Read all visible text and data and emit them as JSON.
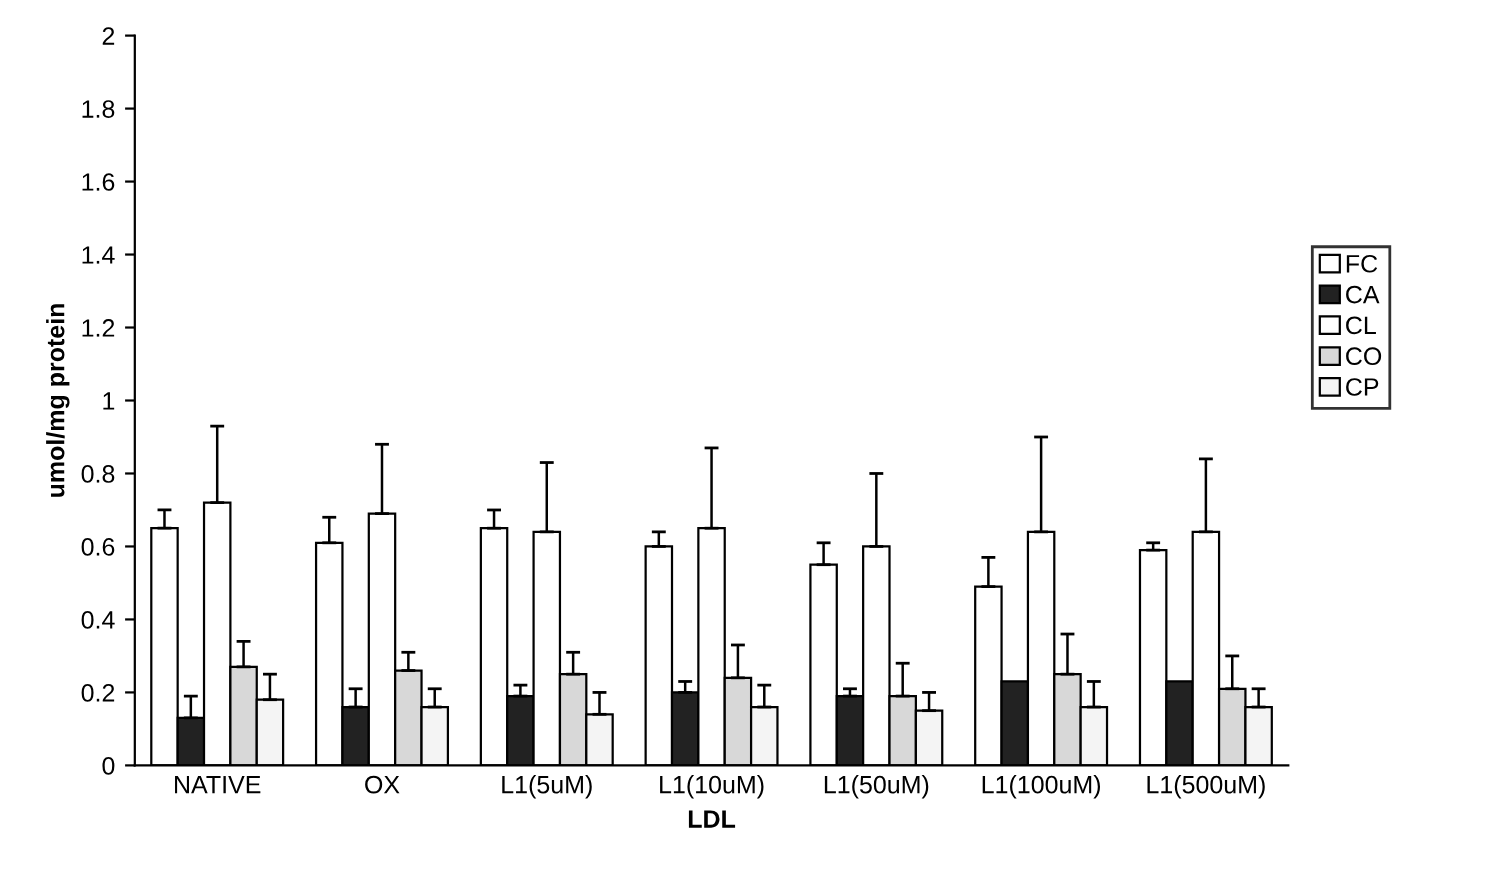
{
  "chart_data": {
    "type": "bar",
    "xlabel": "LDL",
    "ylabel": "umol/mg protein",
    "categories": [
      "NATIVE",
      "OX",
      "L1(5uM)",
      "L1(10uM)",
      "L1(50uM)",
      "L1(100uM)",
      "L1(500uM)"
    ],
    "series": [
      {
        "name": "FC",
        "color": "#ffffff",
        "values": [
          0.65,
          0.61,
          0.65,
          0.6,
          0.55,
          0.49,
          0.59
        ],
        "errors": [
          [
            0.65,
            0.7
          ],
          [
            0.61,
            0.68
          ],
          [
            0.65,
            0.7
          ],
          [
            0.6,
            0.64
          ],
          [
            0.55,
            0.61
          ],
          [
            0.49,
            0.57
          ],
          [
            0.59,
            0.61
          ]
        ]
      },
      {
        "name": "CA",
        "color": "#222222",
        "values": [
          0.13,
          0.16,
          0.19,
          0.2,
          0.19,
          0.23,
          0.23
        ],
        "errors": [
          [
            0.13,
            0.19
          ],
          [
            0.16,
            0.21
          ],
          [
            0.19,
            0.22
          ],
          [
            0.2,
            0.23
          ],
          [
            0.19,
            0.21
          ],
          null,
          null
        ]
      },
      {
        "name": "CL",
        "color": "#ffffff",
        "values": [
          0.72,
          0.69,
          0.64,
          0.65,
          0.6,
          0.64,
          0.64
        ],
        "errors": [
          [
            0.72,
            0.93
          ],
          [
            0.69,
            0.88
          ],
          [
            0.64,
            0.83
          ],
          [
            0.65,
            0.87
          ],
          [
            0.6,
            0.8
          ],
          [
            0.64,
            0.9
          ],
          [
            0.64,
            0.84
          ]
        ]
      },
      {
        "name": "CO",
        "color": "#d8d8d8",
        "values": [
          0.27,
          0.26,
          0.25,
          0.24,
          0.19,
          0.25,
          0.21
        ],
        "errors": [
          [
            0.27,
            0.34
          ],
          [
            0.26,
            0.31
          ],
          [
            0.25,
            0.31
          ],
          [
            0.24,
            0.33
          ],
          [
            0.19,
            0.28
          ],
          [
            0.25,
            0.36
          ],
          [
            0.21,
            0.3
          ]
        ]
      },
      {
        "name": "CP",
        "color": "#f4f4f4",
        "values": [
          0.18,
          0.16,
          0.14,
          0.16,
          0.15,
          0.16,
          0.16
        ],
        "errors": [
          [
            0.18,
            0.25
          ],
          [
            0.16,
            0.21
          ],
          [
            0.14,
            0.2
          ],
          [
            0.16,
            0.22
          ],
          [
            0.15,
            0.2
          ],
          [
            0.16,
            0.23
          ],
          [
            0.16,
            0.21
          ]
        ]
      }
    ],
    "ylim": [
      0,
      2
    ],
    "yticks": [
      0,
      0.2,
      0.4,
      0.6,
      0.8,
      1,
      1.2,
      1.4,
      1.6,
      1.8,
      2
    ],
    "grid": false,
    "legend": "right"
  }
}
